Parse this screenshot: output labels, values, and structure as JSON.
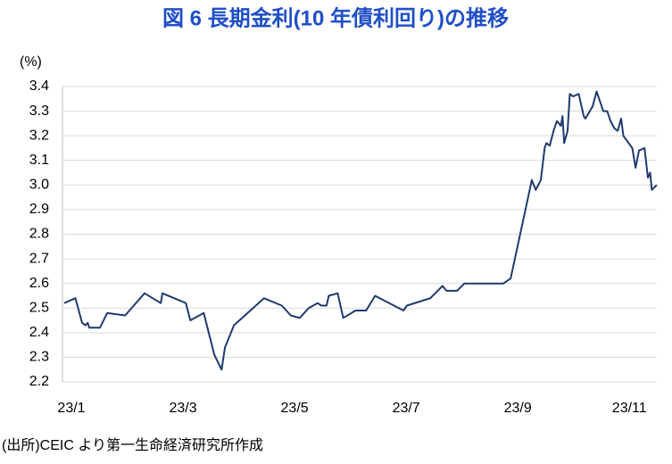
{
  "chart_data": {
    "type": "line",
    "title": "図 6  長期金利(10 年債利回り)の推移",
    "y_label": "(%)",
    "source": "(出所)CEIC より第一生命経済研究所作成",
    "x": [
      0,
      0.2,
      0.32,
      0.38,
      0.42,
      0.45,
      0.64,
      0.77,
      1.09,
      1.44,
      1.73,
      1.76,
      2.18,
      2.26,
      2.5,
      2.69,
      2.82,
      2.88,
      3.04,
      3.58,
      3.9,
      4.06,
      4.22,
      4.38,
      4.54,
      4.61,
      4.7,
      4.74,
      4.9,
      5.0,
      5.22,
      5.41,
      5.57,
      6.08,
      6.14,
      6.56,
      6.78,
      6.85,
      7.04,
      7.17,
      7.87,
      8.0,
      8.38,
      8.45,
      8.54,
      8.61,
      8.64,
      8.7,
      8.77,
      8.83,
      8.9,
      8.93,
      8.96,
      9.02,
      9.06,
      9.12,
      9.22,
      9.31,
      9.34,
      9.47,
      9.54,
      9.66,
      9.73,
      9.79,
      9.86,
      9.92,
      9.98,
      10.02,
      10.18,
      10.24,
      10.3,
      10.4,
      10.46,
      10.5,
      10.53,
      10.62
    ],
    "series": [
      {
        "name": "10年債利回り",
        "color": "#1f3a6e",
        "values": [
          2.52,
          2.54,
          2.44,
          2.43,
          2.44,
          2.42,
          2.42,
          2.48,
          2.47,
          2.56,
          2.52,
          2.56,
          2.52,
          2.45,
          2.48,
          2.31,
          2.25,
          2.34,
          2.43,
          2.54,
          2.51,
          2.47,
          2.46,
          2.5,
          2.52,
          2.51,
          2.51,
          2.55,
          2.56,
          2.46,
          2.49,
          2.49,
          2.55,
          2.49,
          2.51,
          2.54,
          2.59,
          2.57,
          2.57,
          2.6,
          2.6,
          2.62,
          3.02,
          2.98,
          3.02,
          3.15,
          3.17,
          3.16,
          3.22,
          3.26,
          3.24,
          3.28,
          3.17,
          3.22,
          3.37,
          3.36,
          3.37,
          3.28,
          3.27,
          3.32,
          3.38,
          3.3,
          3.3,
          3.26,
          3.23,
          3.22,
          3.27,
          3.2,
          3.15,
          3.07,
          3.14,
          3.15,
          3.03,
          3.05,
          2.98,
          3.0
        ]
      }
    ],
    "xlim": [
      0,
      10.62
    ],
    "xticks": [
      {
        "value": 0,
        "label": "23/1"
      },
      {
        "value": 2,
        "label": "23/3"
      },
      {
        "value": 4,
        "label": "23/5"
      },
      {
        "value": 6,
        "label": "23/7"
      },
      {
        "value": 8,
        "label": "23/9"
      },
      {
        "value": 10,
        "label": "23/11"
      }
    ],
    "ylim": [
      2.2,
      3.4
    ],
    "yticks": [
      2.2,
      2.3,
      2.4,
      2.5,
      2.6,
      2.7,
      2.8,
      2.9,
      {
        "value": 3,
        "label": "3.0"
      },
      3.1,
      3.2,
      3.3,
      3.4
    ],
    "grid": true
  }
}
